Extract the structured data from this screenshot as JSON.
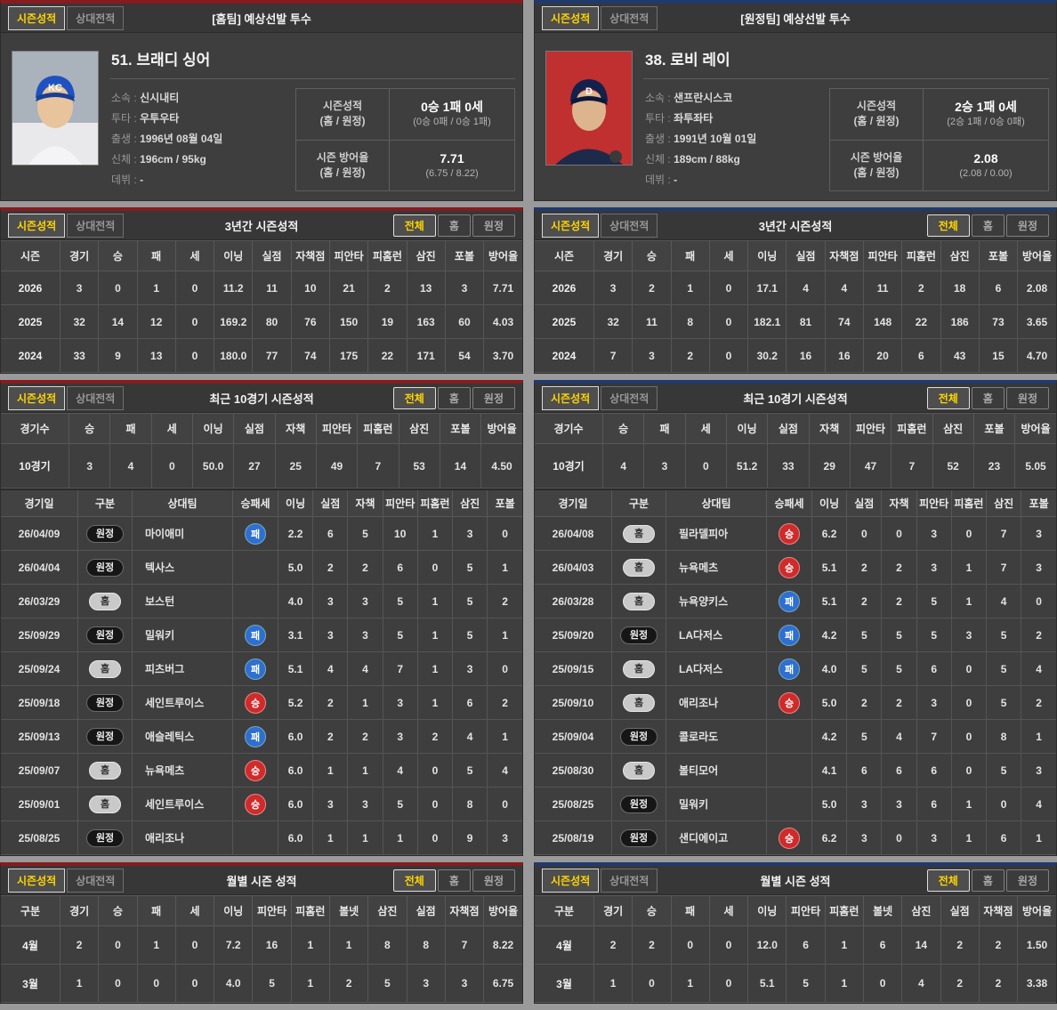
{
  "tabs": [
    "시즌성적",
    "상대전적"
  ],
  "filters": [
    "전체",
    "홈",
    "원정"
  ],
  "badges": {
    "home": "홈",
    "away": "원정",
    "win": "승",
    "lose": "패"
  },
  "colors": {
    "left_accent": "#871b1e",
    "right_accent": "#203a6e",
    "active_text": "#ffd400",
    "win_badge": "#cf2b2b",
    "lose_badge": "#2e6fd2"
  },
  "left": {
    "header_title": "[홈팀] 예상선발 투수",
    "player": {
      "name": "51. 브래디 싱어",
      "info": [
        {
          "label": "소속",
          "value": "신시내티"
        },
        {
          "label": "투타",
          "value": "우투우타"
        },
        {
          "label": "출생",
          "value": "1996년 08월 04일"
        },
        {
          "label": "신체",
          "value": "196cm / 95kg"
        },
        {
          "label": "데뷔",
          "value": "-"
        }
      ],
      "summary": [
        {
          "label": "시즌성적",
          "sublabel": "(홈 / 원정)",
          "value": "0승 1패 0세",
          "subvalue": "(0승 0패 / 0승 1패)"
        },
        {
          "label": "시즌 방어율",
          "sublabel": "(홈 / 원정)",
          "value": "7.71",
          "subvalue": "(6.75 / 8.22)"
        }
      ]
    },
    "season3": {
      "title": "3년간 시즌성적",
      "headers": [
        "시즌",
        "경기",
        "승",
        "패",
        "세",
        "이닝",
        "실점",
        "자책점",
        "피안타",
        "피홈런",
        "삼진",
        "포볼",
        "방어율"
      ],
      "rows": [
        [
          "2026",
          "3",
          "0",
          "1",
          "0",
          "11.2",
          "11",
          "10",
          "21",
          "2",
          "13",
          "3",
          "7.71"
        ],
        [
          "2025",
          "32",
          "14",
          "12",
          "0",
          "169.2",
          "80",
          "76",
          "150",
          "19",
          "163",
          "60",
          "4.03"
        ],
        [
          "2024",
          "33",
          "9",
          "13",
          "0",
          "180.0",
          "77",
          "74",
          "175",
          "22",
          "171",
          "54",
          "3.70"
        ]
      ]
    },
    "recent10": {
      "title": "최근 10경기 시즌성적",
      "headers": [
        "경기수",
        "승",
        "패",
        "세",
        "이닝",
        "실점",
        "자책",
        "피안타",
        "피홈런",
        "삼진",
        "포볼",
        "방어율"
      ],
      "rows": [
        [
          "10경기",
          "3",
          "4",
          "0",
          "50.0",
          "27",
          "25",
          "49",
          "7",
          "53",
          "14",
          "4.50"
        ]
      ]
    },
    "gamelog": {
      "headers": [
        "경기일",
        "구분",
        "상대팀",
        "승패세",
        "이닝",
        "실점",
        "자책",
        "피안타",
        "피홈런",
        "삼진",
        "포볼"
      ],
      "rows": [
        {
          "date": "26/04/09",
          "side": "away",
          "opponent": "마이애미",
          "result": "lose",
          "stats": [
            "2.2",
            "6",
            "5",
            "10",
            "1",
            "3",
            "0"
          ]
        },
        {
          "date": "26/04/04",
          "side": "away",
          "opponent": "텍사스",
          "result": "",
          "stats": [
            "5.0",
            "2",
            "2",
            "6",
            "0",
            "5",
            "1"
          ]
        },
        {
          "date": "26/03/29",
          "side": "home",
          "opponent": "보스턴",
          "result": "",
          "stats": [
            "4.0",
            "3",
            "3",
            "5",
            "1",
            "5",
            "2"
          ]
        },
        {
          "date": "25/09/29",
          "side": "away",
          "opponent": "밀워키",
          "result": "lose",
          "stats": [
            "3.1",
            "3",
            "3",
            "5",
            "1",
            "5",
            "1"
          ]
        },
        {
          "date": "25/09/24",
          "side": "home",
          "opponent": "피츠버그",
          "result": "lose",
          "stats": [
            "5.1",
            "4",
            "4",
            "7",
            "1",
            "3",
            "0"
          ]
        },
        {
          "date": "25/09/18",
          "side": "away",
          "opponent": "세인트루이스",
          "result": "win",
          "stats": [
            "5.2",
            "2",
            "1",
            "3",
            "1",
            "6",
            "2"
          ]
        },
        {
          "date": "25/09/13",
          "side": "away",
          "opponent": "애슬레틱스",
          "result": "lose",
          "stats": [
            "6.0",
            "2",
            "2",
            "3",
            "2",
            "4",
            "1"
          ]
        },
        {
          "date": "25/09/07",
          "side": "home",
          "opponent": "뉴욕메츠",
          "result": "win",
          "stats": [
            "6.0",
            "1",
            "1",
            "4",
            "0",
            "5",
            "4"
          ]
        },
        {
          "date": "25/09/01",
          "side": "home",
          "opponent": "세인트루이스",
          "result": "win",
          "stats": [
            "6.0",
            "3",
            "3",
            "5",
            "0",
            "8",
            "0"
          ]
        },
        {
          "date": "25/08/25",
          "side": "away",
          "opponent": "애리조나",
          "result": "",
          "stats": [
            "6.0",
            "1",
            "1",
            "1",
            "0",
            "9",
            "3"
          ]
        }
      ]
    },
    "monthly": {
      "title": "월별 시즌 성적",
      "headers": [
        "구분",
        "경기",
        "승",
        "패",
        "세",
        "이닝",
        "피안타",
        "피홈런",
        "볼넷",
        "삼진",
        "실점",
        "자책점",
        "방어율"
      ],
      "rows": [
        [
          "4월",
          "2",
          "0",
          "1",
          "0",
          "7.2",
          "16",
          "1",
          "1",
          "8",
          "8",
          "7",
          "8.22"
        ],
        [
          "3월",
          "1",
          "0",
          "0",
          "0",
          "4.0",
          "5",
          "1",
          "2",
          "5",
          "3",
          "3",
          "6.75"
        ]
      ]
    }
  },
  "right": {
    "header_title": "[원정팀] 예상선발 투수",
    "player": {
      "name": "38. 로비 레이",
      "info": [
        {
          "label": "소속",
          "value": "샌프란시스코"
        },
        {
          "label": "투타",
          "value": "좌투좌타"
        },
        {
          "label": "출생",
          "value": "1991년 10월 01일"
        },
        {
          "label": "신체",
          "value": "189cm / 88kg"
        },
        {
          "label": "데뷔",
          "value": "-"
        }
      ],
      "summary": [
        {
          "label": "시즌성적",
          "sublabel": "(홈 / 원정)",
          "value": "2승 1패 0세",
          "subvalue": "(2승 1패 / 0승 0패)"
        },
        {
          "label": "시즌 방어율",
          "sublabel": "(홈 / 원정)",
          "value": "2.08",
          "subvalue": "(2.08 / 0.00)"
        }
      ]
    },
    "season3": {
      "title": "3년간 시즌성적",
      "headers": [
        "시즌",
        "경기",
        "승",
        "패",
        "세",
        "이닝",
        "실점",
        "자책점",
        "피안타",
        "피홈런",
        "삼진",
        "포볼",
        "방어율"
      ],
      "rows": [
        [
          "2026",
          "3",
          "2",
          "1",
          "0",
          "17.1",
          "4",
          "4",
          "11",
          "2",
          "18",
          "6",
          "2.08"
        ],
        [
          "2025",
          "32",
          "11",
          "8",
          "0",
          "182.1",
          "81",
          "74",
          "148",
          "22",
          "186",
          "73",
          "3.65"
        ],
        [
          "2024",
          "7",
          "3",
          "2",
          "0",
          "30.2",
          "16",
          "16",
          "20",
          "6",
          "43",
          "15",
          "4.70"
        ]
      ]
    },
    "recent10": {
      "title": "최근 10경기 시즌성적",
      "headers": [
        "경기수",
        "승",
        "패",
        "세",
        "이닝",
        "실점",
        "자책",
        "피안타",
        "피홈런",
        "삼진",
        "포볼",
        "방어율"
      ],
      "rows": [
        [
          "10경기",
          "4",
          "3",
          "0",
          "51.2",
          "33",
          "29",
          "47",
          "7",
          "52",
          "23",
          "5.05"
        ]
      ]
    },
    "gamelog": {
      "headers": [
        "경기일",
        "구분",
        "상대팀",
        "승패세",
        "이닝",
        "실점",
        "자책",
        "피안타",
        "피홈런",
        "삼진",
        "포볼"
      ],
      "rows": [
        {
          "date": "26/04/08",
          "side": "home",
          "opponent": "필라델피아",
          "result": "win",
          "stats": [
            "6.2",
            "0",
            "0",
            "3",
            "0",
            "7",
            "3"
          ]
        },
        {
          "date": "26/04/03",
          "side": "home",
          "opponent": "뉴욕메츠",
          "result": "win",
          "stats": [
            "5.1",
            "2",
            "2",
            "3",
            "1",
            "7",
            "3"
          ]
        },
        {
          "date": "26/03/28",
          "side": "home",
          "opponent": "뉴욕양키스",
          "result": "lose",
          "stats": [
            "5.1",
            "2",
            "2",
            "5",
            "1",
            "4",
            "0"
          ]
        },
        {
          "date": "25/09/20",
          "side": "away",
          "opponent": "LA다저스",
          "result": "lose",
          "stats": [
            "4.2",
            "5",
            "5",
            "5",
            "3",
            "5",
            "2"
          ]
        },
        {
          "date": "25/09/15",
          "side": "home",
          "opponent": "LA다저스",
          "result": "lose",
          "stats": [
            "4.0",
            "5",
            "5",
            "6",
            "0",
            "5",
            "4"
          ]
        },
        {
          "date": "25/09/10",
          "side": "home",
          "opponent": "애리조나",
          "result": "win",
          "stats": [
            "5.0",
            "2",
            "2",
            "3",
            "0",
            "5",
            "2"
          ]
        },
        {
          "date": "25/09/04",
          "side": "away",
          "opponent": "콜로라도",
          "result": "",
          "stats": [
            "4.2",
            "5",
            "4",
            "7",
            "0",
            "8",
            "1"
          ]
        },
        {
          "date": "25/08/30",
          "side": "home",
          "opponent": "볼티모어",
          "result": "",
          "stats": [
            "4.1",
            "6",
            "6",
            "6",
            "0",
            "5",
            "3"
          ]
        },
        {
          "date": "25/08/25",
          "side": "away",
          "opponent": "밀워키",
          "result": "",
          "stats": [
            "5.0",
            "3",
            "3",
            "6",
            "1",
            "0",
            "4"
          ]
        },
        {
          "date": "25/08/19",
          "side": "away",
          "opponent": "샌디에이고",
          "result": "win",
          "stats": [
            "6.2",
            "3",
            "0",
            "3",
            "1",
            "6",
            "1"
          ]
        }
      ]
    },
    "monthly": {
      "title": "월별 시즌 성적",
      "headers": [
        "구분",
        "경기",
        "승",
        "패",
        "세",
        "이닝",
        "피안타",
        "피홈런",
        "볼넷",
        "삼진",
        "실점",
        "자책점",
        "방어율"
      ],
      "rows": [
        [
          "4월",
          "2",
          "2",
          "0",
          "0",
          "12.0",
          "6",
          "1",
          "6",
          "14",
          "2",
          "2",
          "1.50"
        ],
        [
          "3월",
          "1",
          "0",
          "1",
          "0",
          "5.1",
          "5",
          "1",
          "0",
          "4",
          "2",
          "2",
          "3.38"
        ]
      ]
    }
  }
}
